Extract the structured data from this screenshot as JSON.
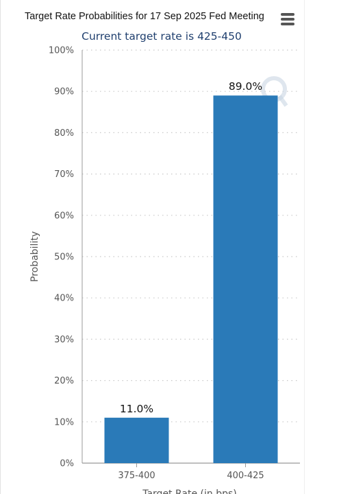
{
  "chart_data": {
    "type": "bar",
    "title": "Target Rate Probabilities for 17 Sep 2025 Fed Meeting",
    "subtitle": "Current target rate is 425-450",
    "categories": [
      "375-400",
      "400-425"
    ],
    "values": [
      11.0,
      89.0
    ],
    "data_labels": [
      "11.0%",
      "89.0%"
    ],
    "xlabel": "Target Rate (in bps)",
    "ylabel": "Probability",
    "ylim": [
      0,
      100
    ],
    "yticks": [
      0,
      10,
      20,
      30,
      40,
      50,
      60,
      70,
      80,
      90,
      100
    ],
    "ytick_labels": [
      "0%",
      "10%",
      "20%",
      "30%",
      "40%",
      "50%",
      "60%",
      "70%",
      "80%",
      "90%",
      "100%"
    ],
    "grid": true,
    "legend": "none",
    "colors": {
      "bar": "#2a7ab8",
      "grid": "#c8c8c8",
      "axis": "#999999",
      "subtitle": "#1f3f6e"
    }
  },
  "toolbar": {
    "menu_icon": "hamburger-menu-icon"
  },
  "watermark": {
    "icon": "q-watermark-icon"
  }
}
